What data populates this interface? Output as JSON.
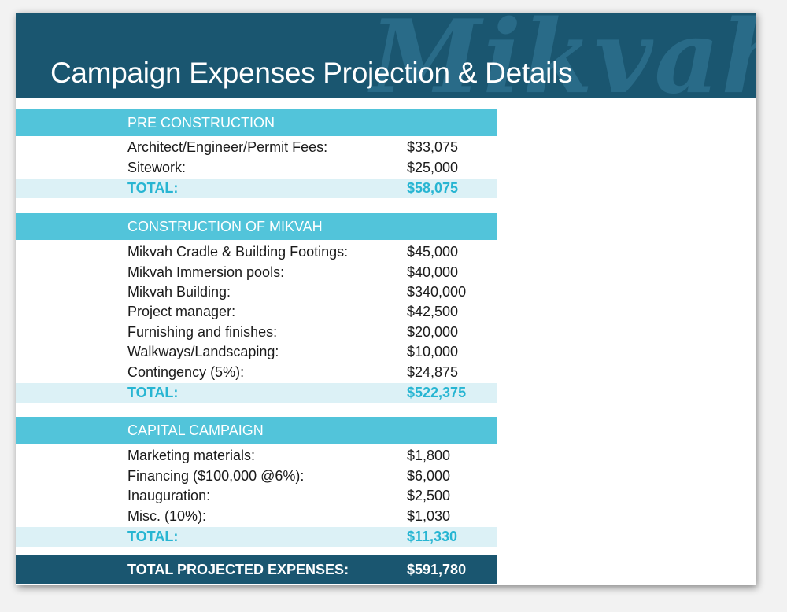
{
  "header": {
    "title": "Campaign Expenses Projection & Details",
    "watermark": "Mikvah"
  },
  "sections": [
    {
      "heading": "PRE CONSTRUCTION",
      "items": [
        {
          "label": "Architect/Engineer/Permit Fees:",
          "value": "$33,075"
        },
        {
          "label": "Sitework:",
          "value": "$25,000"
        }
      ],
      "total_label": "TOTAL:",
      "total_value": "$58,075"
    },
    {
      "heading": "CONSTRUCTION OF MIKVAH",
      "items": [
        {
          "label": "Mikvah Cradle & Building Footings:",
          "value": "$45,000"
        },
        {
          "label": "Mikvah Immersion pools:",
          "value": "$40,000"
        },
        {
          "label": "Mikvah Building:",
          "value": "$340,000"
        },
        {
          "label": "Project manager:",
          "value": "$42,500"
        },
        {
          "label": "Furnishing and finishes:",
          "value": "$20,000"
        },
        {
          "label": "Walkways/Landscaping:",
          "value": "$10,000"
        },
        {
          "label": "Contingency (5%):",
          "value": "$24,875"
        }
      ],
      "total_label": "TOTAL:",
      "total_value": "$522,375"
    },
    {
      "heading": "CAPITAL CAMPAIGN",
      "items": [
        {
          "label": "Marketing materials:",
          "value": "$1,800"
        },
        {
          "label": "Financing ($100,000 @6%):",
          "value": "$6,000"
        },
        {
          "label": "Inauguration:",
          "value": "$2,500"
        },
        {
          "label": "Misc. (10%):",
          "value": "$1,030"
        }
      ],
      "total_label": "TOTAL:",
      "total_value": "$11,330"
    }
  ],
  "grand_total": {
    "label": "TOTAL PROJECTED EXPENSES:",
    "value": "$591,780"
  },
  "colors": {
    "header_bg": "#1a5670",
    "section_bar": "#52c4da",
    "total_row_bg": "#dcf1f6",
    "total_text": "#27b5d2"
  }
}
